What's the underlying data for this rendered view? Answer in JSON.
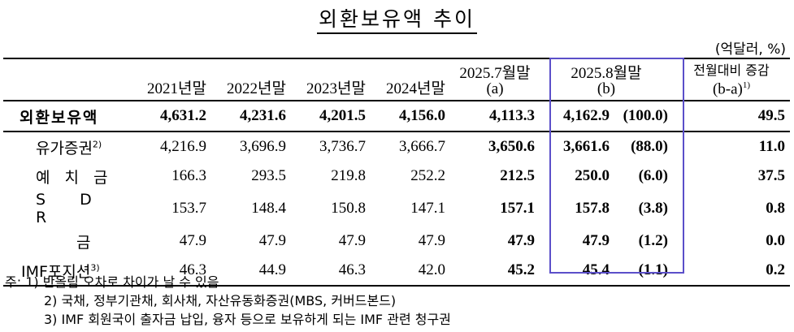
{
  "title": "외환보유액 추이",
  "unit": "(억달러, %)",
  "columns": [
    "2021년말",
    "2022년말",
    "2023년말",
    "2024년말",
    "2025.7월말",
    "(a)",
    "2025.8월말",
    "(b)",
    "전월대비 증감",
    "(b-a)",
    "1)"
  ],
  "rows": [
    {
      "label": "외환보유액",
      "sup": "",
      "values": [
        "4,631.2",
        "4,231.6",
        "4,201.5",
        "4,156.0",
        "4,113.3",
        "4,162.9",
        "(100.0)",
        "49.5"
      ]
    },
    {
      "label": "유가증권",
      "sup": "2)",
      "values": [
        "4,216.9",
        "3,696.9",
        "3,736.7",
        "3,666.7",
        "3,650.6",
        "3,661.6",
        "(88.0)",
        "11.0"
      ]
    },
    {
      "label": "예 치 금",
      "sup": "",
      "values": [
        "166.3",
        "293.5",
        "219.8",
        "252.2",
        "212.5",
        "250.0",
        "(6.0)",
        "37.5"
      ]
    },
    {
      "label": "S D R",
      "sup": "",
      "values": [
        "153.7",
        "148.4",
        "150.8",
        "147.1",
        "157.1",
        "157.8",
        "(3.8)",
        "0.8"
      ]
    },
    {
      "label": "금",
      "sup": "",
      "values": [
        "47.9",
        "47.9",
        "47.9",
        "47.9",
        "47.9",
        "47.9",
        "(1.2)",
        "0.0"
      ]
    },
    {
      "label": "IMF포지션",
      "sup": "3)",
      "values": [
        "46.3",
        "44.9",
        "46.3",
        "42.0",
        "45.2",
        "45.4",
        "(1.1)",
        "0.2"
      ]
    }
  ],
  "notes": [
    "주: 1) 반올림 오차로 차이가 날 수 있음",
    "2) 국채, 정부기관채, 회사채, 자산유동화증권(MBS, 커버드본드)",
    "3) IMF 회원국이 출자금 납입, 융자 등으로 보유하게 되는 IMF 관련 청구권"
  ]
}
